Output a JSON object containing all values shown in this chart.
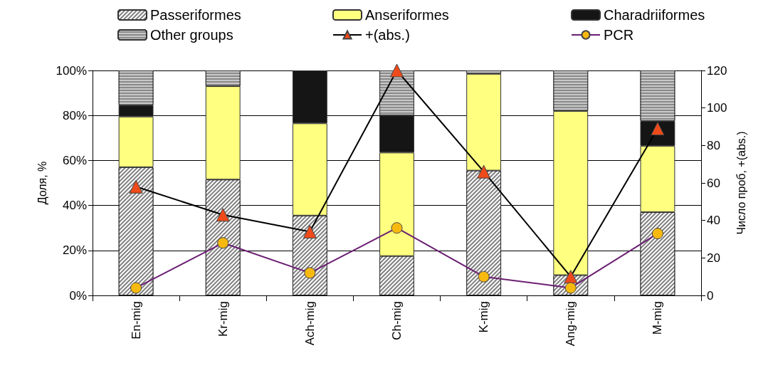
{
  "chart_data": {
    "type": "bar",
    "stacked": true,
    "ylabel": "Доля, %",
    "y2label": "Число проб, +(abs.)",
    "categories": [
      "En-mig",
      "Kr-mig",
      "Ach-mig",
      "Ch-mig",
      "K-mig",
      "Ang-mig",
      "M-mig"
    ],
    "series": [
      {
        "name": "Passeriformes",
        "color": "#7f7f7f",
        "values": [
          57,
          51.5,
          35.5,
          17.5,
          55.5,
          9,
          37
        ]
      },
      {
        "name": "Anseriformes",
        "color": "#ffff80",
        "values": [
          22.5,
          41.5,
          41,
          46,
          43,
          73,
          29.5
        ]
      },
      {
        "name": "Charadriiformes",
        "color": "#151515",
        "values": [
          5,
          0,
          23.5,
          16.5,
          0,
          0,
          11
        ]
      },
      {
        "name": "Other groups",
        "color": "#8a8a8a",
        "values": [
          15.5,
          7,
          0,
          20,
          1.5,
          18,
          22.5
        ]
      },
      {
        "name": "+(abs.)",
        "type": "line",
        "axis": "y2",
        "marker": "triangle",
        "color": "#000000",
        "colors": [
          "#ee4a1a",
          "#ee4a1a",
          "#ee4a1a",
          "#ee4a1a",
          "#ee4a1a",
          "#ee4a1a",
          "#ee4a1a"
        ],
        "values": [
          58,
          43,
          34,
          120,
          66,
          10,
          89
        ]
      },
      {
        "name": "PCR",
        "type": "line",
        "axis": "y2",
        "marker": "circle",
        "color": "#6b1f72",
        "colors": [
          "#f7b90f",
          "#f7b90f",
          "#f7b90f",
          "#f7b90f",
          "#f7b90f",
          "#f7b90f",
          "#f7b90f"
        ],
        "values": [
          4,
          28,
          12,
          36,
          10,
          4,
          33
        ]
      }
    ],
    "ylim": [
      0,
      100
    ],
    "yticks": [
      {
        "value": 0,
        "label": "0%"
      },
      {
        "value": 20,
        "label": "20%"
      },
      {
        "value": 40,
        "label": "40%"
      },
      {
        "value": 60,
        "label": "60%"
      },
      {
        "value": 80,
        "label": "80%"
      },
      {
        "value": 100,
        "label": "100%"
      }
    ],
    "y2lim": [
      0,
      120
    ],
    "y2ticks": [
      0,
      20,
      40,
      60,
      80,
      100,
      120
    ],
    "grid": "y",
    "legend": "top"
  }
}
